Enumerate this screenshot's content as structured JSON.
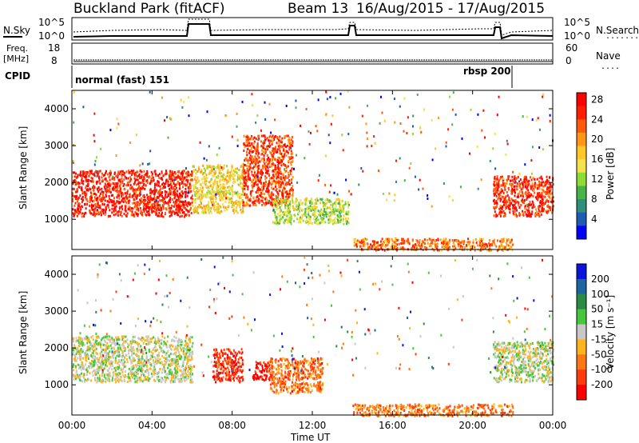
{
  "header": {
    "site": "Buckland Park (fitACF)",
    "beam": "Beam 13",
    "dates": "16/Aug/2015 - 17/Aug/2015"
  },
  "summary": {
    "nsky_label": "N.Sky",
    "nsearch_label": "N.Search",
    "nsearch_legend": "........",
    "noise_ticks": [
      "10^5",
      "10^0"
    ],
    "freq_label_1": "Freq.",
    "freq_label_2": "[MHz]",
    "freq_ticks_left": [
      "18",
      "8"
    ],
    "nave_label": "Nave",
    "nave_legend": "....",
    "nave_ticks_right": [
      "60",
      "0"
    ],
    "cpid_label": "CPID",
    "cpid_modes": [
      {
        "name": "normal (fast) 151",
        "start_hour": 0
      },
      {
        "name": "rbsp 200",
        "start_hour": 22
      }
    ]
  },
  "chart_data": [
    {
      "type": "heatmap",
      "title": "Power",
      "ylabel": "Slant Range [km]",
      "xlabel": "",
      "ylim": [
        180,
        4500
      ],
      "y_ticks": [
        "1000",
        "2000",
        "3000",
        "4000"
      ],
      "x_ticks": [
        "00:00",
        "04:00",
        "08:00",
        "12:00",
        "16:00",
        "20:00",
        "00:00"
      ],
      "colorbar": {
        "label": "Power [dB]",
        "ticks": [
          "4",
          "8",
          "12",
          "16",
          "20",
          "24",
          "28"
        ],
        "colors": [
          "#0000ff",
          "#1e5cb4",
          "#2f8f7b",
          "#46b446",
          "#8fdc37",
          "#f5e14b",
          "#ffc828",
          "#ff9614",
          "#ff5a0a",
          "#ff1e00",
          "#ff0000"
        ]
      },
      "regions": [
        {
          "t0": 0.0,
          "t1": 6.0,
          "r0": 1100,
          "r1": 2350,
          "level": 0.92
        },
        {
          "t0": 6.0,
          "t1": 8.5,
          "r0": 1200,
          "r1": 2500,
          "level": 0.55
        },
        {
          "t0": 8.5,
          "t1": 11.0,
          "r0": 1400,
          "r1": 3300,
          "level": 0.85
        },
        {
          "t0": 10.0,
          "t1": 13.8,
          "r0": 900,
          "r1": 1600,
          "level": 0.45
        },
        {
          "t0": 14.0,
          "t1": 22.0,
          "r0": 180,
          "r1": 500,
          "level": 0.75
        },
        {
          "t0": 21.0,
          "t1": 24.0,
          "r0": 1100,
          "r1": 2200,
          "level": 0.9
        }
      ]
    },
    {
      "type": "heatmap",
      "title": "Velocity",
      "ylabel": "Slant Range [km]",
      "xlabel": "Time UT",
      "ylim": [
        180,
        4500
      ],
      "y_ticks": [
        "1000",
        "2000",
        "3000",
        "4000"
      ],
      "x_ticks": [
        "00:00",
        "04:00",
        "08:00",
        "12:00",
        "16:00",
        "20:00",
        "00:00"
      ],
      "colorbar": {
        "label": "Velocity [m s⁻¹]",
        "ticks": [
          "200",
          "100",
          "50",
          "15",
          "-15",
          "-50",
          "-100",
          "-200"
        ],
        "colors": [
          "#0a14dc",
          "#1e64a0",
          "#2d8a46",
          "#46c83c",
          "#c8c8c8",
          "#ffb41e",
          "#ff7814",
          "#ff3c0a",
          "#ff0000"
        ]
      },
      "regions": [
        {
          "t0": 0.0,
          "t1": 6.0,
          "r0": 1100,
          "r1": 2350,
          "level": 0.5
        },
        {
          "t0": 7.0,
          "t1": 8.5,
          "r0": 1100,
          "r1": 2000,
          "level": 0.95
        },
        {
          "t0": 9.0,
          "t1": 10.0,
          "r0": 1150,
          "r1": 1650,
          "level": 0.98
        },
        {
          "t0": 9.8,
          "t1": 12.5,
          "r0": 800,
          "r1": 1750,
          "level": 0.78
        },
        {
          "t0": 14.0,
          "t1": 22.0,
          "r0": 180,
          "r1": 500,
          "level": 0.75
        },
        {
          "t0": 21.0,
          "t1": 24.0,
          "r0": 1100,
          "r1": 2200,
          "level": 0.5
        }
      ]
    }
  ]
}
